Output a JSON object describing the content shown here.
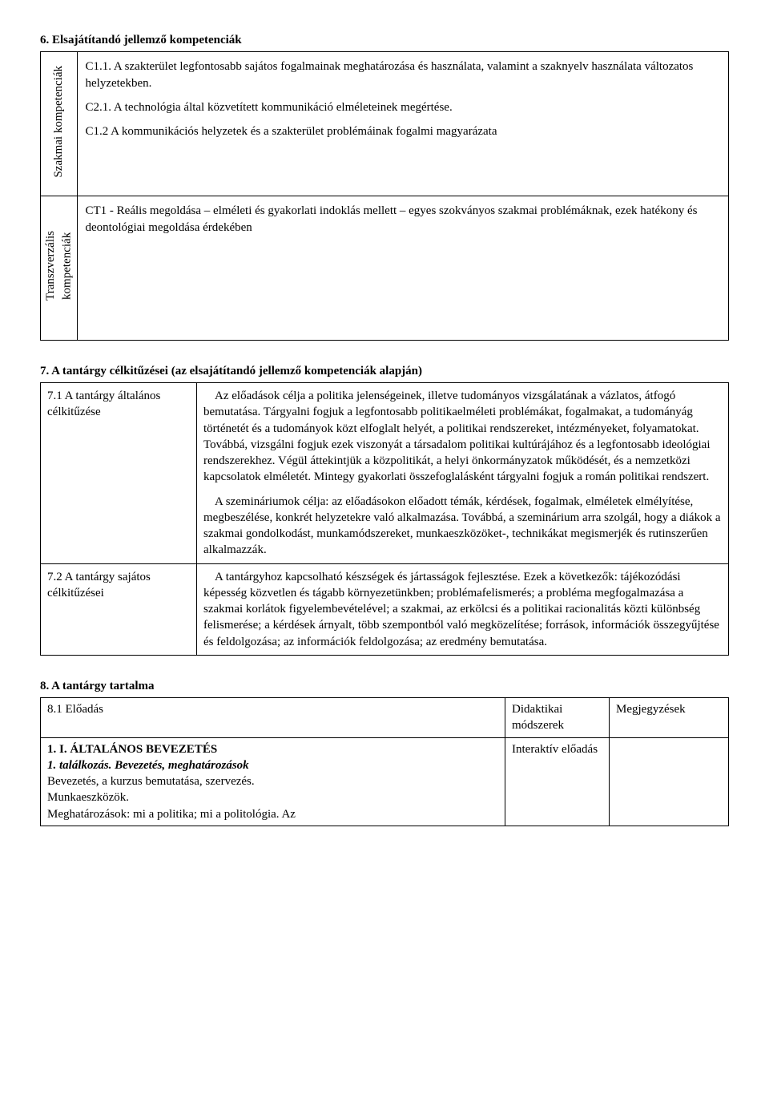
{
  "section6": {
    "heading": "6. Elsajátítandó jellemző kompetenciák",
    "row1": {
      "vlabel": "Szakmai kompetenciák",
      "p1": "C1.1. A szakterület legfontosabb sajátos fogalmainak meghatározása és használata, valamint a szaknyelv használata változatos helyzetekben.",
      "p2": "C2.1. A technológia által közvetített kommunikáció elméleteinek megértése.",
      "p3": "C1.2 A kommunikációs helyzetek és a szakterület problémáinak  fogalmi magyarázata"
    },
    "row2": {
      "vlabel": "Transzverzális\nkompetenciák",
      "p1": "CT1 - Reális megoldása – elméleti és gyakorlati indoklás mellett – egyes szokványos szakmai problémáknak, ezek hatékony és deontológiai megoldása érdekében"
    }
  },
  "section7": {
    "heading": "7. A tantárgy célkitűzései (az elsajátítandó jellemző kompetenciák alapján)",
    "row1": {
      "label": "7.1 A tantárgy általános célkitűzése",
      "p1": "Az előadások célja a politika jelenségeinek, illetve tudományos vizsgálatának a vázlatos, átfogó bemutatása. Tárgyalni fogjuk a legfontosabb politikaelméleti problémákat, fogalmakat, a tudományág történetét és a tudományok közt elfoglalt helyét, a politikai rendszereket, intézményeket, folyamatokat. Továbbá, vizsgálni fogjuk ezek viszonyát a társadalom politikai kultúrájához és a legfontosabb ideológiai rendszerekhez. Végül áttekintjük a közpolitikát, a helyi önkormányzatok működését, és a nemzetközi kapcsolatok elméletét. Mintegy gyakorlati összefoglalásként tárgyalni fogjuk a román politikai rendszert.",
      "p2": "A szemináriumok célja: az előadásokon előadott témák, kérdések, fogalmak, elméletek elmélyítése, megbeszélése, konkrét helyzetekre való alkalmazása.  Továbbá, a szeminárium arra szolgál, hogy a diákok a szakmai gondolkodást, munkamódszereket, munkaeszközöket-, technikákat megismerjék és rutinszerűen alkalmazzák."
    },
    "row2": {
      "label": "7.2 A tantárgy sajátos célkitűzései",
      "p1": "A tantárgyhoz kapcsolható készségek és jártasságok fejlesztése. Ezek a következők: tájékozódási képesség közvetlen és tágabb környezetünkben; problémafelismerés; a probléma megfogalmazása a szakmai korlátok figyelembevételével; a szakmai, az erkölcsi és a politikai racionalitás közti különbség felismerése; a kérdések árnyalt, több szempontból való megközelítése; források, információk összegyűjtése és feldolgozása; az információk feldolgozása; az eredmény bemutatása."
    }
  },
  "section8": {
    "heading": "8. A tantárgy tartalma",
    "header": {
      "c1": "8.1 Előadás",
      "c2": "Didaktikai módszerek",
      "c3": "Megjegyzések"
    },
    "row1": {
      "title": "1. I. ÁLTALÁNOS BEVEZETÉS",
      "sub": "1. találkozás. Bevezetés, meghatározások",
      "l3": "Bevezetés, a kurzus bemutatása, szervezés.",
      "l4": "Munkaeszközök.",
      "l5": "Meghatározások: mi a politika; mi a politológia. Az",
      "method": "Interaktív előadás"
    }
  }
}
